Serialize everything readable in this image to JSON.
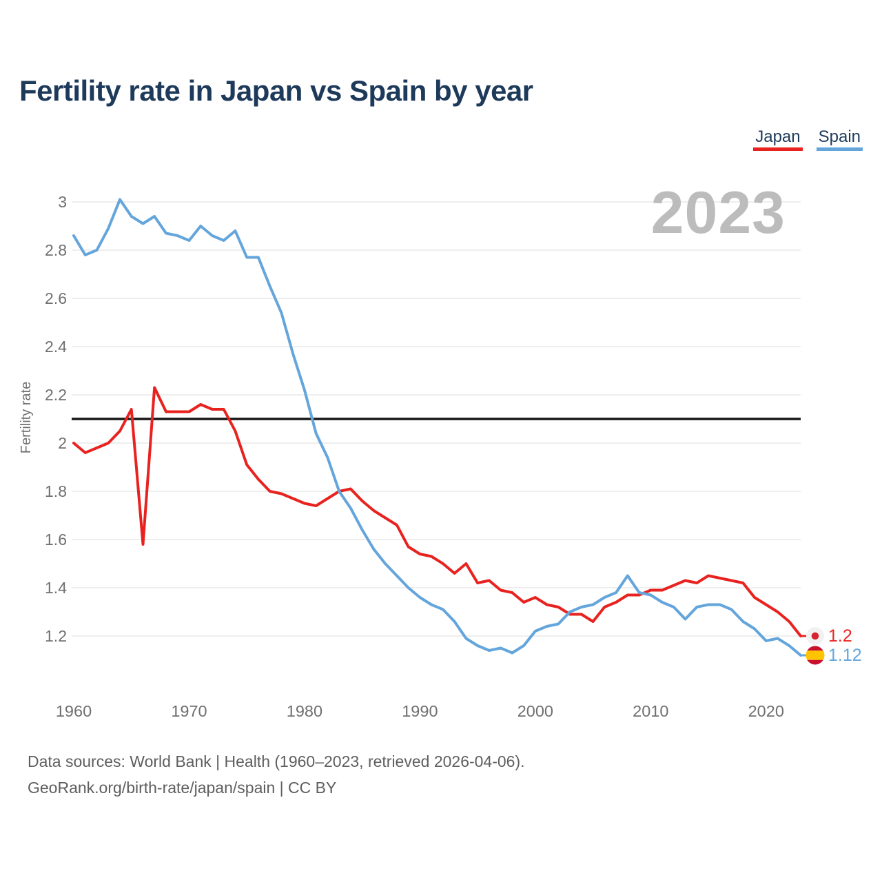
{
  "title": "Fertility rate in Japan vs Spain by year",
  "watermark": {
    "text": "2023"
  },
  "legend": {
    "items": [
      {
        "label": "Japan",
        "color": "#e8231f"
      },
      {
        "label": "Spain",
        "color": "#64a5dc"
      }
    ]
  },
  "footer": {
    "line1": "Data sources: World Bank | Health (1960–2023, retrieved 2026-04-06).",
    "line2": "GeoRank.org/birth-rate/japan/spain | CC BY"
  },
  "chart_data": {
    "type": "line",
    "title": "Fertility rate in Japan vs Spain by year",
    "xlabel": "",
    "ylabel": "Fertility rate",
    "x_start": 1960,
    "x_end": 2023,
    "x_ticks": [
      1960,
      1970,
      1980,
      1990,
      2000,
      2010,
      2020
    ],
    "y_ticks": [
      1.2,
      1.4,
      1.6,
      1.8,
      2,
      2.2,
      2.4,
      2.6,
      2.8,
      3
    ],
    "ylim": [
      1.05,
      3.06
    ],
    "grid": "horizontal",
    "reference_line": 2.1,
    "legend_position": "top-right",
    "series": [
      {
        "name": "Japan",
        "color": "#e8231f",
        "flag": "japan",
        "end_label": "1.2",
        "values": [
          2.0,
          1.96,
          1.98,
          2.0,
          2.05,
          2.14,
          1.58,
          2.23,
          2.13,
          2.13,
          2.13,
          2.16,
          2.14,
          2.14,
          2.05,
          1.91,
          1.85,
          1.8,
          1.79,
          1.77,
          1.75,
          1.74,
          1.77,
          1.8,
          1.81,
          1.76,
          1.72,
          1.69,
          1.66,
          1.57,
          1.54,
          1.53,
          1.5,
          1.46,
          1.5,
          1.42,
          1.43,
          1.39,
          1.38,
          1.34,
          1.36,
          1.33,
          1.32,
          1.29,
          1.29,
          1.26,
          1.32,
          1.34,
          1.37,
          1.37,
          1.39,
          1.39,
          1.41,
          1.43,
          1.42,
          1.45,
          1.44,
          1.43,
          1.42,
          1.36,
          1.33,
          1.3,
          1.26,
          1.2
        ]
      },
      {
        "name": "Spain",
        "color": "#64a5dc",
        "flag": "spain",
        "end_label": "1.12",
        "values": [
          2.86,
          2.78,
          2.8,
          2.89,
          3.01,
          2.94,
          2.91,
          2.94,
          2.87,
          2.86,
          2.84,
          2.9,
          2.86,
          2.84,
          2.88,
          2.77,
          2.77,
          2.65,
          2.54,
          2.37,
          2.22,
          2.04,
          1.94,
          1.8,
          1.73,
          1.64,
          1.56,
          1.5,
          1.45,
          1.4,
          1.36,
          1.33,
          1.31,
          1.26,
          1.19,
          1.16,
          1.14,
          1.15,
          1.13,
          1.16,
          1.22,
          1.24,
          1.25,
          1.3,
          1.32,
          1.33,
          1.36,
          1.38,
          1.45,
          1.38,
          1.37,
          1.34,
          1.32,
          1.27,
          1.32,
          1.33,
          1.33,
          1.31,
          1.26,
          1.23,
          1.18,
          1.19,
          1.16,
          1.12
        ]
      }
    ]
  }
}
